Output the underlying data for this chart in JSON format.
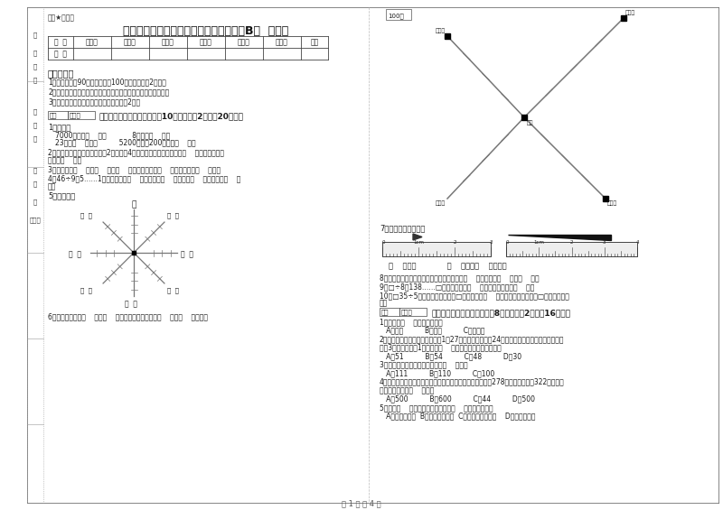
{
  "title": "苏教版三年级数学【上册】期末考试试卷B卷  附解析",
  "watermark": "题库★应用题",
  "table_headers": [
    "题  号",
    "填空题",
    "选择题",
    "判断题",
    "计算题",
    "综合题",
    "应用题",
    "总分"
  ],
  "table_row": [
    "得  分",
    "",
    "",
    "",
    "",
    "",
    "",
    ""
  ],
  "notice_title": "考试须知：",
  "notice_items": [
    "1．考试时间：90分钟，满分为100分（含卷面分2分）。",
    "2．请首先按要求在试卷的指定位置填写您的姓名、班级、学号。",
    "3．不要在试卷上乱写乱画，卷面不整洁扣2分。"
  ],
  "section1_title": "一、用心思考，正确填空（共10小题，每题2分，共20分）。",
  "q1_title": "1．换算。",
  "q1_line1": "7000千克＝（    ）吨            8千克＝（    ）克",
  "q1_line2": "23吨＝（    ）千克          5200千克－200千克＝（    ）吨",
  "q2": "2．劳动课上做纸花，红红做了2朵纸花，4朵蓝花。红花占纸花总数的（    ），蓝花占纸花",
  "q2b": "总数的（    ）。",
  "q3": "3．你出生于（    ）年（    ）月（    ）日，那一年是（    ）年，全年有（    ）天。",
  "q4": "4．46÷9＝5……1中，被除数是（    ），除数是（    ），商是（    ），余数是（    ）",
  "q4b": "）。",
  "q5_title": "5．填一填。",
  "compass_north": "北",
  "compass_labels": [
    "（  ）",
    "（  ）",
    "（  ）",
    "（  ）",
    "（  ）",
    "（  ）",
    "（  ）"
  ],
  "q6": "6．小红家在学校（    ）方（    ）米处；小明家在学校（    ）方（    ）米处。",
  "q_measure": "7．量出钉子的长度。",
  "q_measure_result": "（    ）毫米             （    ）厘米（    ）毫米。",
  "q8": "8．在进位加法中，不管哪一位上的数相加满（    ），都要向（    ）进（    ）。",
  "q9": "9．□÷8＝138……□，余数最大填（    ），这时被除数是（    ）。",
  "q10": "10．□35÷5，要使商是两位数，□里最大可填（    ）；要使商是三位数，□里最小应填（",
  "q10b": "）。",
  "section2_title": "二、反复比较，慎重选择（共8小题，每题2分，共16分）。",
  "mc1": "1．四边形（    ）平行四边形。",
  "mc1_opt": "   A．一定          B．可能          C．不可能",
  "mc2": "2．学校开设两个兴趣小组，三（1）27人参加书画小组，24人参加棋艺小组，两个小组都参加",
  "mc2b": "的有3人，那么三（1）一共有（    ）人参了书画和棋艺小组。",
  "mc2_opt": "   A．51          B．54          C．48          D．30",
  "mc3": "3．最大的三位数是最大一位数的（    ）倍。",
  "mc3_opt": "   A．111          B．110          C．100",
  "mc4": "4．广州新电视塔是广州市目前最高的建筑，它比中信大厦高278米，中信大厦高322米，那么",
  "mc4b": "广州新电视塔高（    ）米。",
  "mc4_opt": "   A．500          B．600          C．44          D．500",
  "mc5": "5．明天（    ）会下雨，今天下午我（    ）游遍全世界。",
  "mc5_opt": "   A．一定，可能  B．可能，不可能  C．不可能，不可能    D．可能，可能",
  "scale_label": "100米",
  "label_school": "学校",
  "label_xiaohong": "小红家",
  "label_xiaoming": "小明家",
  "label_xiaoqing": "小青家",
  "label_xiaolin": "小林家",
  "page_info": "第 1 页 共 4 页",
  "score_label": "得分",
  "judge_label": "评卷人",
  "sidebar": [
    "准",
    "考",
    "证",
    "号",
    "姓",
    "名",
    "班",
    "级",
    "学",
    "校",
    "（章）"
  ],
  "bg_color": "#ffffff"
}
